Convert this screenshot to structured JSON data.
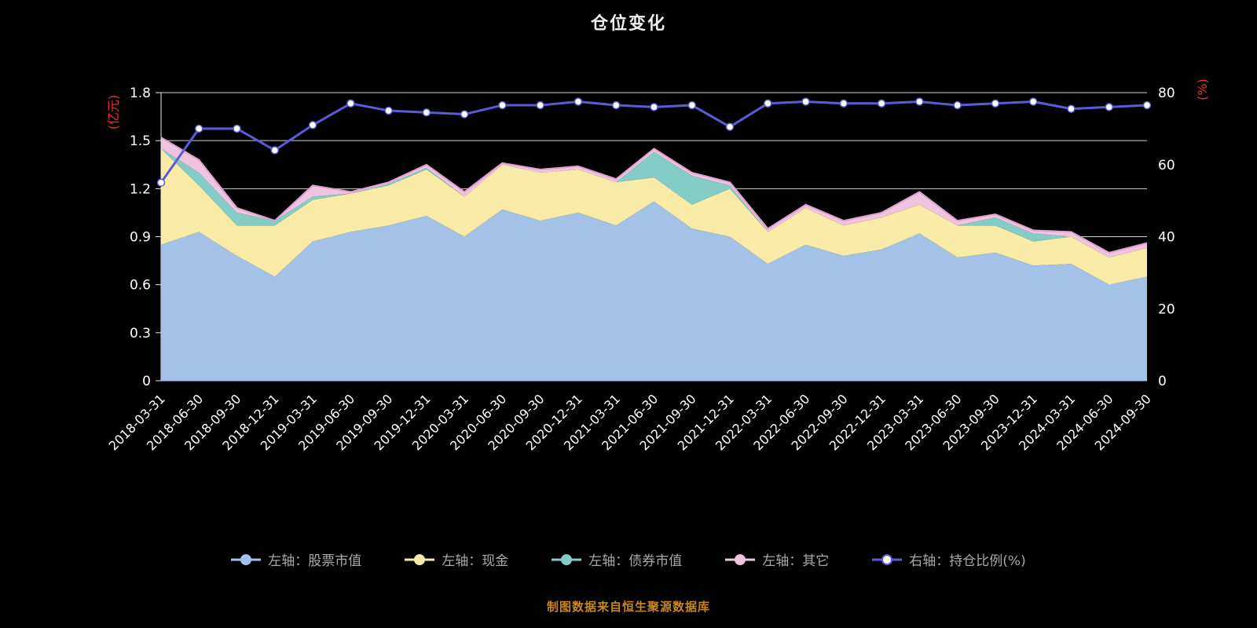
{
  "title": "仓位变化",
  "footer": "制图数据来自恒生聚源数据库",
  "legend": [
    {
      "id": "stock",
      "label": "左轴：股票市值",
      "color": "#a4c2e7",
      "marker": "area"
    },
    {
      "id": "cash",
      "label": "左轴：现金",
      "color": "#f8eba8",
      "marker": "area"
    },
    {
      "id": "bond",
      "label": "左轴：债券市值",
      "color": "#84cdc6",
      "marker": "area"
    },
    {
      "id": "other",
      "label": "左轴：其它",
      "color": "#eec4df",
      "marker": "area"
    },
    {
      "id": "ratio",
      "label": "右轴：持仓比例(%)",
      "color": "#5b5bd8",
      "marker": "line"
    }
  ],
  "chart_data": {
    "type": "area",
    "stacked": true,
    "grid": true,
    "legend_position": "bottom",
    "x": [
      "2018-03-31",
      "2018-06-30",
      "2018-09-30",
      "2018-12-31",
      "2019-03-31",
      "2019-06-30",
      "2019-09-30",
      "2019-12-31",
      "2020-03-31",
      "2020-06-30",
      "2020-09-30",
      "2020-12-31",
      "2021-03-31",
      "2021-06-30",
      "2021-09-30",
      "2021-12-31",
      "2022-03-31",
      "2022-06-30",
      "2022-09-30",
      "2022-12-31",
      "2023-03-31",
      "2023-06-30",
      "2023-09-30",
      "2023-12-31",
      "2024-03-31",
      "2024-06-30",
      "2024-09-30"
    ],
    "left_axis": {
      "label": "(亿元)",
      "ticks": [
        0,
        0.3,
        0.6,
        0.9,
        1.2,
        1.5,
        1.8
      ],
      "max": 1.8
    },
    "right_axis": {
      "label": "(%)",
      "ticks": [
        0,
        20,
        40,
        60,
        80
      ],
      "max": 80
    },
    "outline_color": "#dfa0cf",
    "axis_color": "#e8e8e8",
    "tick_text_color": "#ffffff",
    "unit_label_color": "#e93030",
    "series": [
      {
        "id": "stock",
        "name": "左轴：股票市值",
        "kind": "area",
        "axis": "left",
        "color": "#a4c2e7",
        "values": [
          0.85,
          0.93,
          0.78,
          0.65,
          0.87,
          0.93,
          0.97,
          1.03,
          0.9,
          1.07,
          1.0,
          1.05,
          0.97,
          1.12,
          0.95,
          0.9,
          0.73,
          0.85,
          0.78,
          0.82,
          0.92,
          0.77,
          0.8,
          0.72,
          0.73,
          0.6,
          0.65
        ]
      },
      {
        "id": "cash",
        "name": "左轴：现金",
        "kind": "area",
        "axis": "left",
        "color": "#f8eba8",
        "values": [
          0.6,
          0.29,
          0.19,
          0.32,
          0.26,
          0.24,
          0.25,
          0.29,
          0.25,
          0.28,
          0.3,
          0.27,
          0.27,
          0.15,
          0.15,
          0.3,
          0.2,
          0.23,
          0.19,
          0.2,
          0.18,
          0.2,
          0.17,
          0.15,
          0.17,
          0.17,
          0.18
        ]
      },
      {
        "id": "bond",
        "name": "左轴：债券市值",
        "kind": "area",
        "axis": "left",
        "color": "#84cdc6",
        "values": [
          0.0,
          0.08,
          0.08,
          0.03,
          0.02,
          0.0,
          0.01,
          0.01,
          0.0,
          0.0,
          0.0,
          0.0,
          0.0,
          0.16,
          0.18,
          0.02,
          0.0,
          0.0,
          0.0,
          0.0,
          0.0,
          0.0,
          0.05,
          0.05,
          0.0,
          0.0,
          0.0
        ]
      },
      {
        "id": "other",
        "name": "左轴：其它",
        "kind": "area",
        "axis": "left",
        "color": "#eec4df",
        "values": [
          0.07,
          0.08,
          0.03,
          0.0,
          0.07,
          0.01,
          0.01,
          0.02,
          0.03,
          0.01,
          0.02,
          0.02,
          0.02,
          0.02,
          0.02,
          0.02,
          0.02,
          0.02,
          0.03,
          0.03,
          0.08,
          0.03,
          0.02,
          0.02,
          0.03,
          0.03,
          0.03
        ]
      },
      {
        "id": "ratio",
        "name": "右轴：持仓比例(%)",
        "kind": "line",
        "axis": "right",
        "color": "#5b5bd8",
        "values": [
          55,
          70,
          70,
          64,
          71,
          77,
          75,
          74.5,
          74,
          76.5,
          76.5,
          77.5,
          76.5,
          76,
          76.5,
          70.5,
          77,
          77.5,
          77,
          77,
          77.5,
          76.5,
          77,
          77.5,
          75.5,
          76,
          76.5
        ]
      }
    ]
  }
}
